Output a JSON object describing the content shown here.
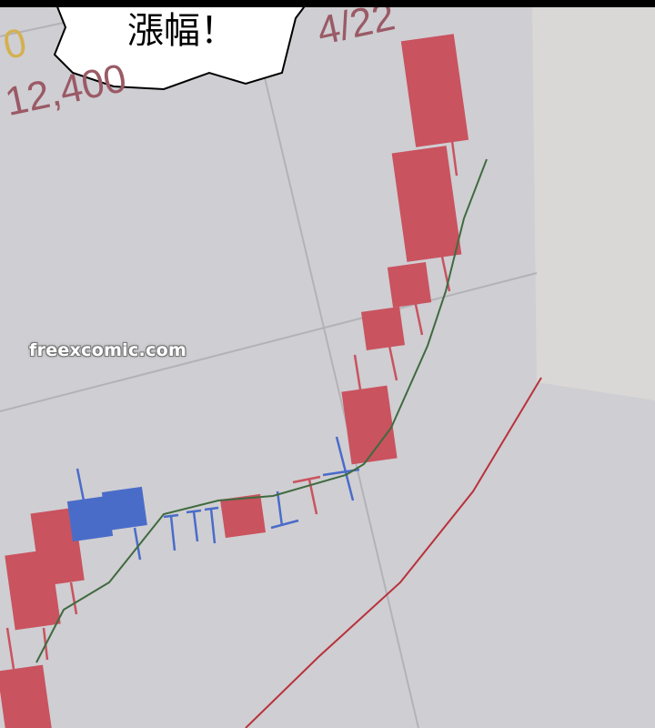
{
  "panel": {
    "price_fragment": "12,400",
    "price_prefix_fragment": "0",
    "date_fragment": "4/22",
    "speech_bubble_text_fragment": "漲幅！",
    "watermark": "freexcomic.com"
  },
  "colors": {
    "background": "#cfced2",
    "bullish_candle": "#c9535f",
    "bearish_candle": "#4a6cc9",
    "short_moving_average": "#3f6b3f",
    "long_moving_average": "#b8323c",
    "text_price": "#9a5a66",
    "text_gold": "#d4b050"
  }
}
